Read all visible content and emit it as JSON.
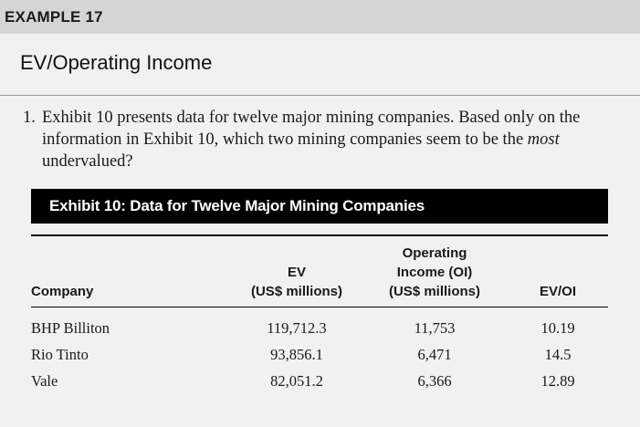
{
  "example": {
    "label": "EXAMPLE 17"
  },
  "heading": "EV/Operating Income",
  "question": {
    "number": "1.",
    "text_before": "Exhibit 10 presents data for twelve major mining companies. Based only on the information in Exhibit 10, which two mining companies seem to be the ",
    "emphasis": "most",
    "text_after": " undervalued?"
  },
  "exhibit": {
    "title": "Exhibit 10: Data for Twelve Major Mining Companies",
    "columns": [
      {
        "lines": [
          "Company"
        ]
      },
      {
        "lines": [
          "EV",
          "(US$ millions)"
        ]
      },
      {
        "lines": [
          "Operating",
          "Income (OI)",
          "(US$ millions)"
        ]
      },
      {
        "lines": [
          "EV/OI"
        ]
      }
    ],
    "rows": [
      [
        "BHP Billiton",
        "119,712.3",
        "11,753",
        "10.19"
      ],
      [
        "Rio Tinto",
        "93,856.1",
        "6,471",
        "14.5"
      ],
      [
        "Vale",
        "82,051.2",
        "6,366",
        "12.89"
      ]
    ]
  }
}
